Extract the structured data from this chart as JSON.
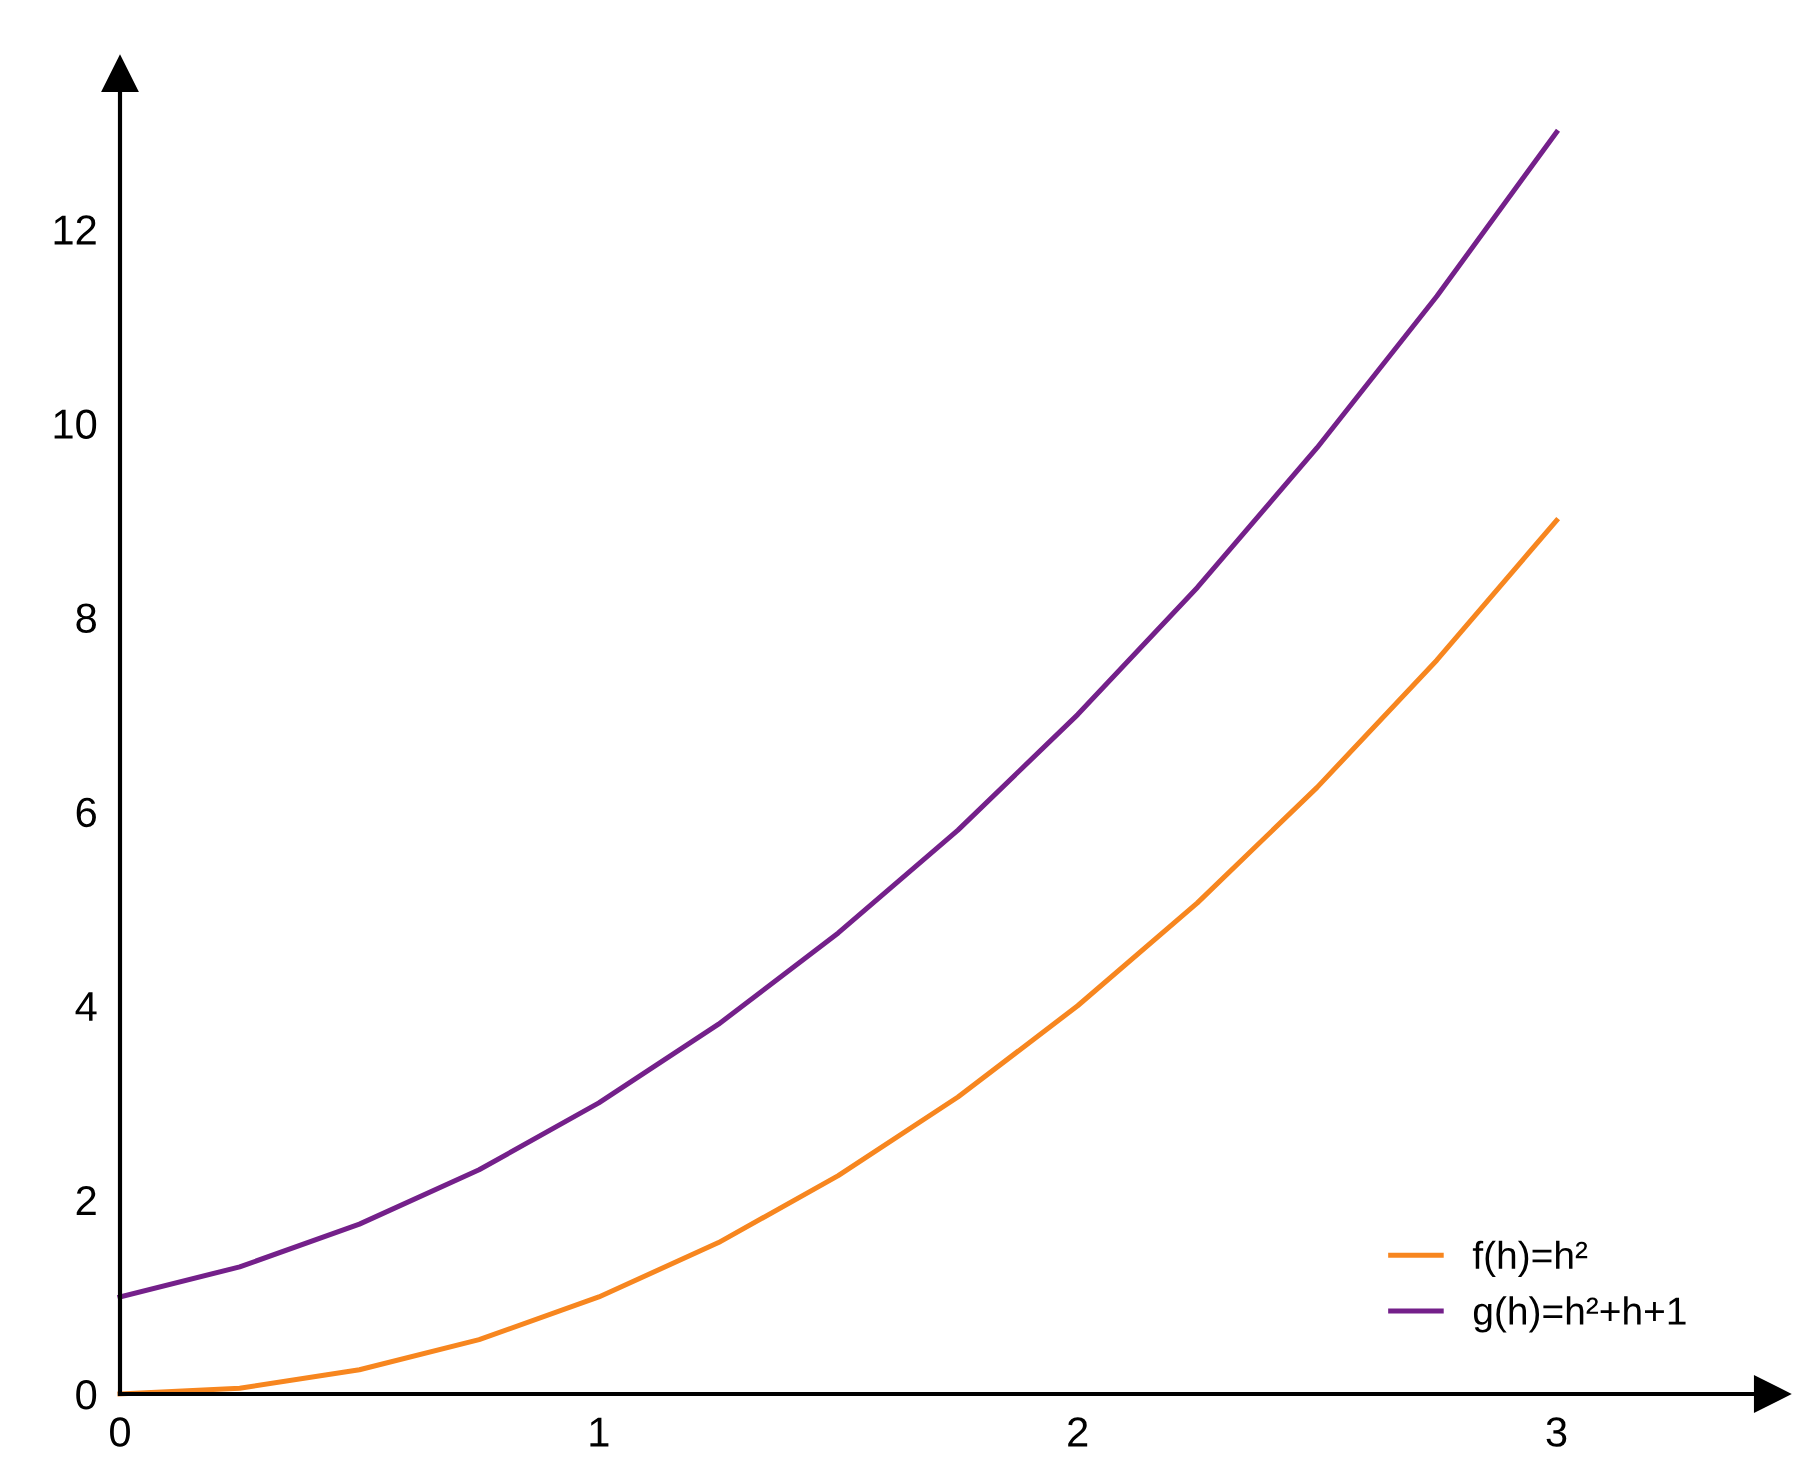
{
  "chart_data": {
    "type": "line",
    "x": [
      0,
      0.25,
      0.5,
      0.75,
      1,
      1.25,
      1.5,
      1.75,
      2,
      2.25,
      2.5,
      2.75,
      3
    ],
    "series": [
      {
        "name": "f(h)=h²",
        "color": "#f7861f",
        "values": [
          0,
          0.06,
          0.25,
          0.56,
          1,
          1.56,
          2.25,
          3.06,
          4,
          5.06,
          6.25,
          7.56,
          9
        ]
      },
      {
        "name": "g(h)=h²+h+1",
        "color": "#74208a",
        "values": [
          1,
          1.31,
          1.75,
          2.31,
          3,
          3.81,
          4.75,
          5.81,
          7,
          8.31,
          9.75,
          11.31,
          13
        ]
      }
    ],
    "xlim": [
      0,
      3.45
    ],
    "ylim": [
      0,
      13.6
    ],
    "xticks": [
      0,
      1,
      2,
      3
    ],
    "yticks": [
      0,
      2,
      4,
      6,
      8,
      10,
      12
    ],
    "grid": false,
    "legend": "bottom right",
    "marker": "none",
    "line_style": "solid"
  }
}
